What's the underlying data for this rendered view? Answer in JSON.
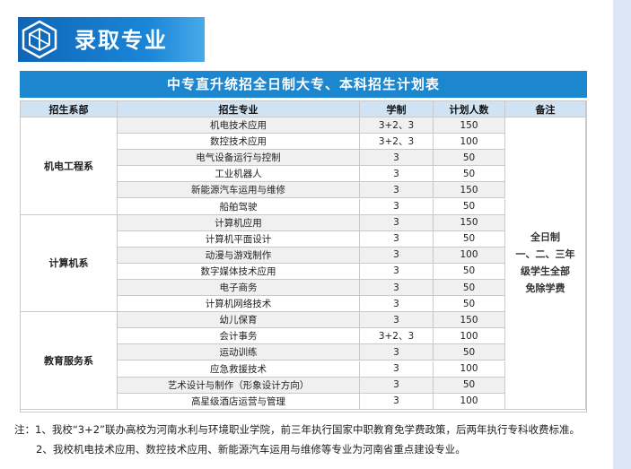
{
  "header": {
    "title": "录取专业",
    "icon": "cube-logo-icon"
  },
  "table": {
    "title": "中专直升统招全日制大专、本科招生计划表",
    "columns": [
      "招生系部",
      "招生专业",
      "学制",
      "计划人数",
      "备注"
    ],
    "departments": [
      {
        "name": "机电工程系",
        "majors": [
          {
            "major": "机电技术应用",
            "duration": "3+2、3",
            "plan": "150"
          },
          {
            "major": "数控技术应用",
            "duration": "3+2、3",
            "plan": "100"
          },
          {
            "major": "电气设备运行与控制",
            "duration": "3",
            "plan": "50"
          },
          {
            "major": "工业机器人",
            "duration": "3",
            "plan": "50"
          },
          {
            "major": "新能源汽车运用与维修",
            "duration": "3",
            "plan": "150"
          },
          {
            "major": "船舶驾驶",
            "duration": "3",
            "plan": "50"
          }
        ]
      },
      {
        "name": "计算机系",
        "majors": [
          {
            "major": "计算机应用",
            "duration": "3",
            "plan": "150"
          },
          {
            "major": "计算机平面设计",
            "duration": "3",
            "plan": "50"
          },
          {
            "major": "动漫与游戏制作",
            "duration": "3",
            "plan": "100"
          },
          {
            "major": "数字媒体技术应用",
            "duration": "3",
            "plan": "50"
          },
          {
            "major": "电子商务",
            "duration": "3",
            "plan": "50"
          },
          {
            "major": "计算机网络技术",
            "duration": "3",
            "plan": "50"
          }
        ]
      },
      {
        "name": "教育服务系",
        "majors": [
          {
            "major": "幼儿保育",
            "duration": "3",
            "plan": "150"
          },
          {
            "major": "会计事务",
            "duration": "3+2、3",
            "plan": "100"
          },
          {
            "major": "运动训练",
            "duration": "3",
            "plan": "50"
          },
          {
            "major": "应急救援技术",
            "duration": "3",
            "plan": "100"
          },
          {
            "major": "艺术设计与制作（形象设计方向）",
            "duration": "3",
            "plan": "50"
          },
          {
            "major": "高星级酒店运营与管理",
            "duration": "3",
            "plan": "100"
          }
        ]
      }
    ],
    "remark": [
      "全日制",
      "一、二、三年",
      "级学生全部",
      "免除学费"
    ]
  },
  "notes": {
    "line1": "注：1、我校“3+2”联办高校为河南水利与环境职业学院，前三年执行国家中职教育免学费政策，后两年执行专科收费标准。",
    "line2": "2、我校机电技术应用、数控技术应用、新能源汽车运用与维修等专业为河南省重点建设专业。"
  },
  "colors": {
    "banner": "#1a86d8",
    "table_title": "#1c86cf",
    "header_row": "#cfe3f5",
    "stripe": "#f0f0f0"
  }
}
